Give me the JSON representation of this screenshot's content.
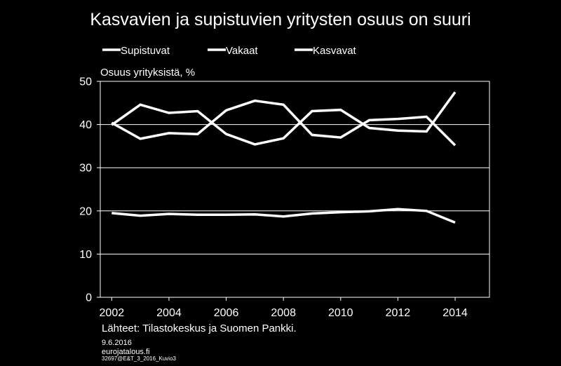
{
  "chart_data": {
    "type": "line",
    "title": "Kasvavien ja supistuvien yritysten osuus on suuri",
    "ylabel": "Osuus yrityksistä, %",
    "xlabel": "",
    "ylim": [
      0,
      50
    ],
    "yticks": [
      0,
      10,
      20,
      30,
      40,
      50
    ],
    "xlim": [
      2001.6,
      2015.2
    ],
    "xticks": [
      2002,
      2004,
      2006,
      2008,
      2010,
      2012,
      2014
    ],
    "grid": true,
    "legend_position": "top-left",
    "line_color": "#ffffff",
    "x": [
      2002,
      2003,
      2004,
      2005,
      2006,
      2007,
      2008,
      2009,
      2010,
      2011,
      2012,
      2013,
      2014
    ],
    "series": [
      {
        "name": "Supistuvat",
        "values": [
          40.4,
          36.7,
          38.0,
          37.8,
          43.3,
          45.5,
          44.6,
          37.6,
          37.0,
          41.0,
          41.3,
          41.8,
          35.2
        ]
      },
      {
        "name": "Vakaat",
        "values": [
          19.5,
          18.9,
          19.3,
          19.1,
          19.1,
          19.2,
          18.7,
          19.4,
          19.7,
          19.9,
          20.4,
          20.0,
          17.3
        ]
      },
      {
        "name": "Kasvavat",
        "values": [
          39.9,
          44.6,
          42.7,
          43.1,
          37.8,
          35.4,
          36.8,
          43.1,
          43.4,
          39.2,
          38.6,
          38.4,
          47.5
        ]
      }
    ]
  },
  "source_text": "Lähteet: Tilastokeskus ja Suomen Pankki.",
  "footer": {
    "date": "9.6.2016",
    "site": "eurojatalous.fi",
    "code": "32697@E&T_3_2016_Kuvio3"
  },
  "colors": {
    "background": "#000000",
    "foreground": "#ffffff"
  }
}
